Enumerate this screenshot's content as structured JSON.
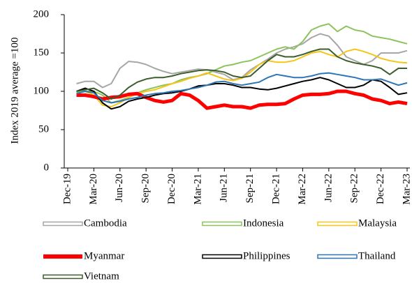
{
  "chart_data": {
    "type": "line",
    "y_label": "Index 2019 average =100",
    "categories": [
      "Dec-19",
      null,
      null,
      "Mar-20",
      null,
      null,
      "Jun-20",
      null,
      null,
      "Sep-20",
      null,
      null,
      "Dec-20",
      null,
      null,
      "Mar-21",
      null,
      null,
      "Jun-21",
      null,
      null,
      "Sep-21",
      null,
      null,
      "Dec-21",
      null,
      null,
      "Mar-22",
      null,
      null,
      "Jun-22",
      null,
      null,
      "Sep-22",
      null,
      null,
      "Dec-22",
      null,
      null,
      "Mar-23"
    ],
    "series": [
      {
        "name": "Cambodia",
        "color": "#a6a6a6",
        "values": [
          null,
          110,
          113,
          113,
          105,
          110,
          130,
          139,
          138,
          135,
          130,
          126,
          123,
          125,
          127,
          129,
          128,
          125,
          122,
          115,
          118,
          128,
          135,
          142,
          150,
          155,
          158,
          162,
          170,
          175,
          172,
          160,
          145,
          140,
          135,
          140,
          150,
          150,
          150,
          153
        ]
      },
      {
        "name": "Indonesia",
        "color": "#8cc35c",
        "values": [
          null,
          98,
          100,
          100,
          95,
          85,
          88,
          92,
          98,
          102,
          105,
          108,
          110,
          115,
          118,
          120,
          123,
          128,
          133,
          135,
          138,
          140,
          145,
          150,
          155,
          158,
          155,
          165,
          180,
          185,
          188,
          178,
          185,
          180,
          178,
          172,
          170,
          168,
          165,
          162
        ]
      },
      {
        "name": "Malaysia",
        "color": "#f5c518",
        "values": [
          null,
          97,
          100,
          95,
          82,
          80,
          85,
          92,
          97,
          100,
          102,
          106,
          110,
          113,
          117,
          120,
          124,
          120,
          116,
          114,
          117,
          125,
          135,
          140,
          138,
          138,
          140,
          145,
          150,
          152,
          148,
          145,
          152,
          155,
          152,
          148,
          143,
          140,
          138,
          137
        ]
      },
      {
        "name": "Myanmar",
        "color": "#ff0000",
        "values": [
          null,
          95,
          95,
          93,
          90,
          92,
          93,
          96,
          97,
          92,
          88,
          86,
          88,
          97,
          95,
          88,
          78,
          80,
          82,
          80,
          80,
          78,
          82,
          83,
          83,
          84,
          90,
          95,
          96,
          96,
          97,
          100,
          100,
          97,
          95,
          90,
          88,
          84,
          86,
          84
        ]
      },
      {
        "name": "Philippines",
        "color": "#000000",
        "values": [
          null,
          100,
          104,
          100,
          85,
          77,
          80,
          87,
          90,
          92,
          95,
          97,
          98,
          100,
          103,
          107,
          108,
          110,
          110,
          108,
          105,
          105,
          103,
          102,
          104,
          107,
          110,
          113,
          115,
          118,
          115,
          110,
          105,
          105,
          108,
          115,
          113,
          105,
          96,
          98
        ]
      },
      {
        "name": "Thailand",
        "color": "#2e75b6",
        "values": [
          null,
          97,
          100,
          98,
          88,
          85,
          87,
          90,
          92,
          95,
          97,
          98,
          100,
          101,
          103,
          105,
          108,
          112,
          113,
          110,
          108,
          110,
          112,
          118,
          122,
          120,
          118,
          118,
          120,
          123,
          124,
          122,
          120,
          118,
          115,
          115,
          116,
          112,
          108,
          111
        ]
      },
      {
        "name": "Vietnam",
        "color": "#3b5e2b",
        "values": [
          null,
          100,
          102,
          104,
          98,
          90,
          95,
          105,
          112,
          116,
          118,
          118,
          120,
          123,
          125,
          127,
          128,
          127,
          125,
          120,
          118,
          120,
          130,
          140,
          148,
          145,
          145,
          148,
          152,
          155,
          155,
          145,
          140,
          137,
          135,
          133,
          130,
          122,
          130,
          130
        ]
      }
    ],
    "ylim": [
      0,
      200
    ],
    "yticks": [
      0,
      50,
      100,
      150,
      200
    ]
  }
}
